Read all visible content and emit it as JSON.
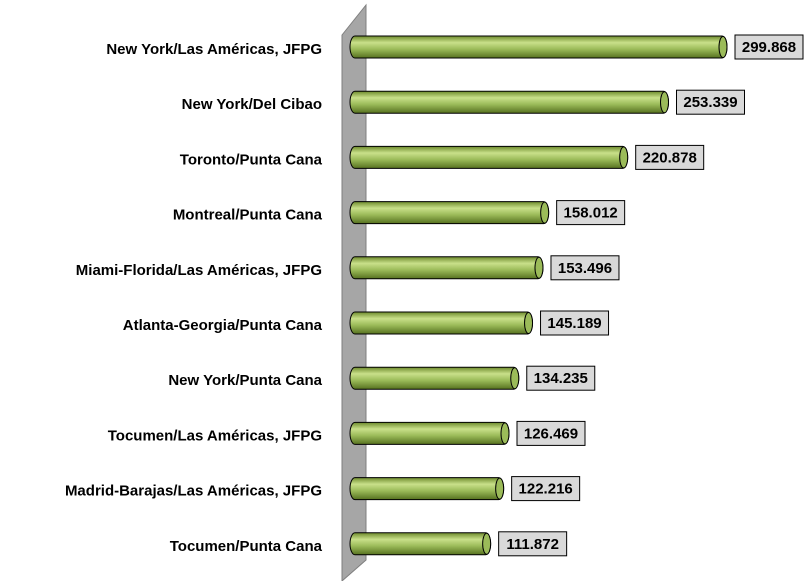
{
  "chart_data": {
    "type": "bar",
    "orientation": "horizontal",
    "color": "#9bbb59",
    "categories": [
      "New York/Las Américas, JFPG",
      "New York/Del Cibao",
      "Toronto/Punta Cana",
      "Montreal/Punta Cana",
      "Miami-Florida/Las Américas, JFPG",
      "Atlanta-Georgia/Punta Cana",
      "New York/Punta Cana",
      "Tocumen/Las Américas, JFPG",
      "Madrid-Barajas/Las Américas, JFPG",
      "Tocumen/Punta Cana"
    ],
    "values": [
      299868,
      253339,
      220878,
      158012,
      153496,
      145189,
      134235,
      126469,
      122216,
      111872
    ],
    "value_labels": [
      "299.868",
      "253.339",
      "220.878",
      "158.012",
      "153.496",
      "145.189",
      "134.235",
      "126.469",
      "122.216",
      "111.872"
    ]
  }
}
